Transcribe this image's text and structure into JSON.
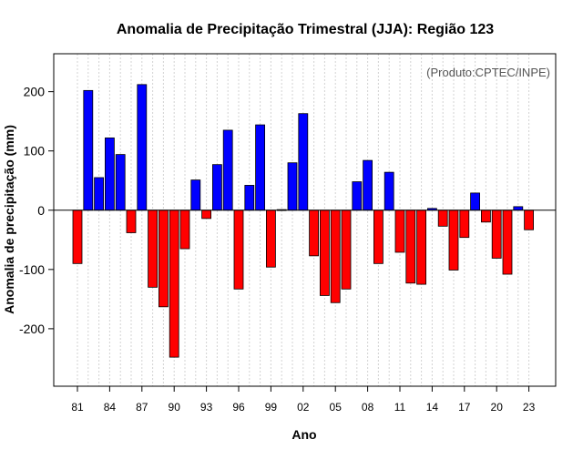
{
  "chart_data": {
    "type": "bar",
    "title": "Anomalia de Precipitação Trimestral (JJA): Região 123",
    "xlabel": "Ano",
    "ylabel": "Anomalia de precipitação (mm)",
    "annotation": "(Produto:CPTEC/INPE)",
    "ylim": [
      -297,
      264
    ],
    "yticks": [
      -200,
      -100,
      0,
      100,
      200
    ],
    "ytick_labels": [
      "-200",
      "-100",
      "0",
      "100",
      "200"
    ],
    "xtick_labels": [
      "81",
      "84",
      "87",
      "90",
      "93",
      "96",
      "99",
      "02",
      "05",
      "08",
      "11",
      "14",
      "17",
      "20",
      "23"
    ],
    "positive_color": "#0000ff",
    "negative_color": "#ff0000",
    "categories": [
      "1981",
      "1982",
      "1983",
      "1984",
      "1985",
      "1986",
      "1987",
      "1988",
      "1989",
      "1990",
      "1991",
      "1992",
      "1993",
      "1994",
      "1995",
      "1996",
      "1997",
      "1998",
      "1999",
      "2000",
      "2001",
      "2002",
      "2003",
      "2004",
      "2005",
      "2006",
      "2007",
      "2008",
      "2009",
      "2010",
      "2011",
      "2012",
      "2013",
      "2014",
      "2015",
      "2016",
      "2017",
      "2018",
      "2019",
      "2020",
      "2021",
      "2022",
      "2023"
    ],
    "values": [
      -90,
      202,
      55,
      122,
      94,
      -38,
      212,
      -130,
      -163,
      -248,
      -65,
      51,
      -14,
      77,
      135,
      -133,
      42,
      144,
      -96,
      1,
      80,
      163,
      -77,
      -144,
      -156,
      -133,
      48,
      84,
      -90,
      64,
      -71,
      -123,
      -125,
      3,
      -27,
      -101,
      -46,
      29,
      -20,
      -81,
      -108,
      6,
      -33
    ]
  }
}
